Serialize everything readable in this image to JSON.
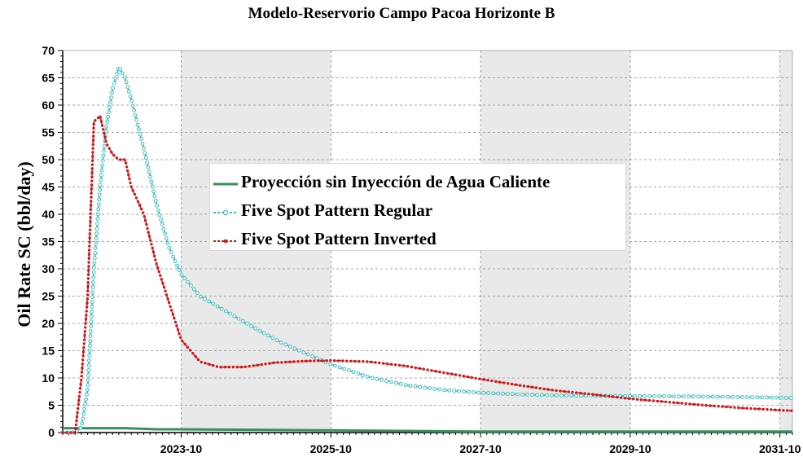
{
  "chart_data": {
    "type": "line",
    "title": "Modelo-Reservorio Campo Pacoa Horizonte B",
    "ylabel": "Oil Rate SC (bbl/day)",
    "xlabel": "",
    "ylim": [
      0,
      70
    ],
    "yticks": [
      0,
      5,
      10,
      15,
      20,
      25,
      30,
      35,
      40,
      45,
      50,
      55,
      60,
      65,
      70
    ],
    "xlim": [
      "2022-03",
      "2031-12"
    ],
    "xticks": [
      "2023-10",
      "2025-10",
      "2027-10",
      "2029-10",
      "2031-10"
    ],
    "grid": true,
    "legend_position": "center",
    "series": [
      {
        "name": "Proyección sin Inyección de Agua Caliente",
        "color": "#3a8f60",
        "marker": "none",
        "points": [
          [
            "2022-03",
            0.8
          ],
          [
            "2022-06",
            0.8
          ],
          [
            "2022-09",
            0.8
          ],
          [
            "2023-01",
            0.8
          ],
          [
            "2023-06",
            0.6
          ],
          [
            "2023-10",
            0.6
          ],
          [
            "2024-10",
            0.5
          ],
          [
            "2025-10",
            0.4
          ],
          [
            "2026-10",
            0.3
          ],
          [
            "2027-10",
            0.2
          ],
          [
            "2028-10",
            0.2
          ],
          [
            "2029-10",
            0.2
          ],
          [
            "2030-10",
            0.2
          ],
          [
            "2031-12",
            0.2
          ]
        ]
      },
      {
        "name": "Five Spot Pattern Regular",
        "color": "#3cbcbc",
        "marker": "circle",
        "points": [
          [
            "2022-03",
            0
          ],
          [
            "2022-05",
            0
          ],
          [
            "2022-06",
            1
          ],
          [
            "2022-07",
            8
          ],
          [
            "2022-08",
            30
          ],
          [
            "2022-09",
            45
          ],
          [
            "2022-10",
            56
          ],
          [
            "2022-11",
            63
          ],
          [
            "2022-12",
            67
          ],
          [
            "2023-01",
            65
          ],
          [
            "2023-02",
            61
          ],
          [
            "2023-04",
            52
          ],
          [
            "2023-06",
            42
          ],
          [
            "2023-08",
            34
          ],
          [
            "2023-10",
            29
          ],
          [
            "2024-01",
            25
          ],
          [
            "2024-04",
            23
          ],
          [
            "2024-07",
            21
          ],
          [
            "2024-10",
            19
          ],
          [
            "2025-02",
            16.5
          ],
          [
            "2025-06",
            14.5
          ],
          [
            "2025-10",
            12.5
          ],
          [
            "2026-04",
            10.2
          ],
          [
            "2026-10",
            8.7
          ],
          [
            "2027-04",
            7.8
          ],
          [
            "2027-10",
            7.3
          ],
          [
            "2028-04",
            7.0
          ],
          [
            "2028-10",
            6.8
          ],
          [
            "2029-10",
            6.7
          ],
          [
            "2030-10",
            6.6
          ],
          [
            "2031-10",
            6.4
          ],
          [
            "2031-12",
            6.3
          ]
        ]
      },
      {
        "name": "Five Spot Pattern Inverted",
        "color": "#d01818",
        "marker": "dot",
        "points": [
          [
            "2022-03",
            0
          ],
          [
            "2022-05",
            0
          ],
          [
            "2022-06",
            10
          ],
          [
            "2022-07",
            25
          ],
          [
            "2022-08",
            57
          ],
          [
            "2022-09",
            58
          ],
          [
            "2022-10",
            53
          ],
          [
            "2022-11",
            51
          ],
          [
            "2022-12",
            50
          ],
          [
            "2023-01",
            50
          ],
          [
            "2023-02",
            45
          ],
          [
            "2023-04",
            40
          ],
          [
            "2023-06",
            31
          ],
          [
            "2023-08",
            24
          ],
          [
            "2023-10",
            17
          ],
          [
            "2024-01",
            13
          ],
          [
            "2024-04",
            12
          ],
          [
            "2024-08",
            12
          ],
          [
            "2025-01",
            12.8
          ],
          [
            "2025-06",
            13.1
          ],
          [
            "2025-10",
            13.2
          ],
          [
            "2026-04",
            13.0
          ],
          [
            "2026-10",
            12.2
          ],
          [
            "2027-04",
            11.0
          ],
          [
            "2027-10",
            9.8
          ],
          [
            "2028-04",
            8.7
          ],
          [
            "2028-10",
            7.7
          ],
          [
            "2029-04",
            7.0
          ],
          [
            "2029-10",
            6.2
          ],
          [
            "2030-04",
            5.6
          ],
          [
            "2030-10",
            5.0
          ],
          [
            "2031-04",
            4.5
          ],
          [
            "2031-10",
            4.1
          ],
          [
            "2031-12",
            4.0
          ]
        ]
      }
    ]
  },
  "colors": {
    "plot_background_alt": "#e9e9e9",
    "grid": "#8a8a8a"
  }
}
